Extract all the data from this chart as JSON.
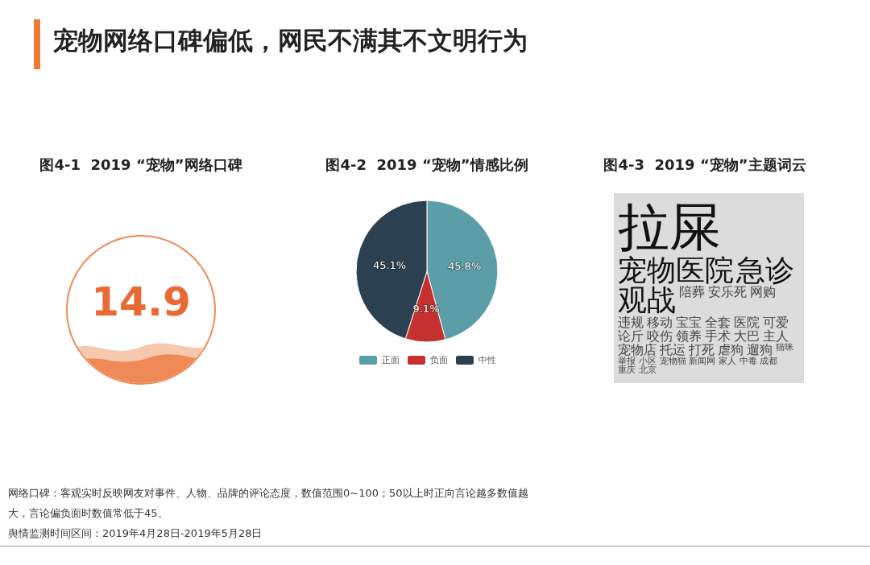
{
  "chart_data": [
    {
      "type": "other",
      "title": "宠物网络口碑偏低，网民不满其不文明行为",
      "annotations": [
        "网络口碑：客观实时反映网友对事件、人物、品牌的评论态度，数值范围0~100；50以上时正向言论越多数值越大，言论偏负面时数值常低于45。",
        "舆情监测时间区间：2019年4月28日-2019年5月28日"
      ]
    },
    {
      "type": "other",
      "title": "图4-1  2019 “宠物”网络口碑",
      "annotations": [
        "14.9"
      ]
    },
    {
      "type": "pie",
      "title": "图4-2  2019 “宠物”情感比例",
      "categories": [
        "正面",
        "负面",
        "中性"
      ],
      "values": [
        45.8,
        9.1,
        45.1
      ],
      "colors": [
        "#5b9ea8",
        "#c4312e",
        "#2b4152"
      ],
      "value_labels": [
        "45.8%",
        "9.1%",
        "45.1%"
      ],
      "legend": "bottom"
    },
    {
      "type": "other",
      "title": "图4-3  2019 “宠物”主题词云",
      "annotations": [
        "拉屎",
        "宠物医院",
        "急诊",
        "观战",
        "陪葬",
        "安乐死",
        "网购",
        "违规",
        "移动",
        "宝宝",
        "全套",
        "医院",
        "可爱",
        "论斤",
        "咬伤",
        "领养",
        "手术",
        "大巴",
        "主人",
        "宠物店",
        "托运",
        "打死",
        "虐狗",
        "遛狗",
        "猫咪",
        "举报",
        "小区",
        "宠物猫",
        "新闻网",
        "家人",
        "中毒",
        "成都",
        "重庆",
        "北京"
      ]
    }
  ]
}
